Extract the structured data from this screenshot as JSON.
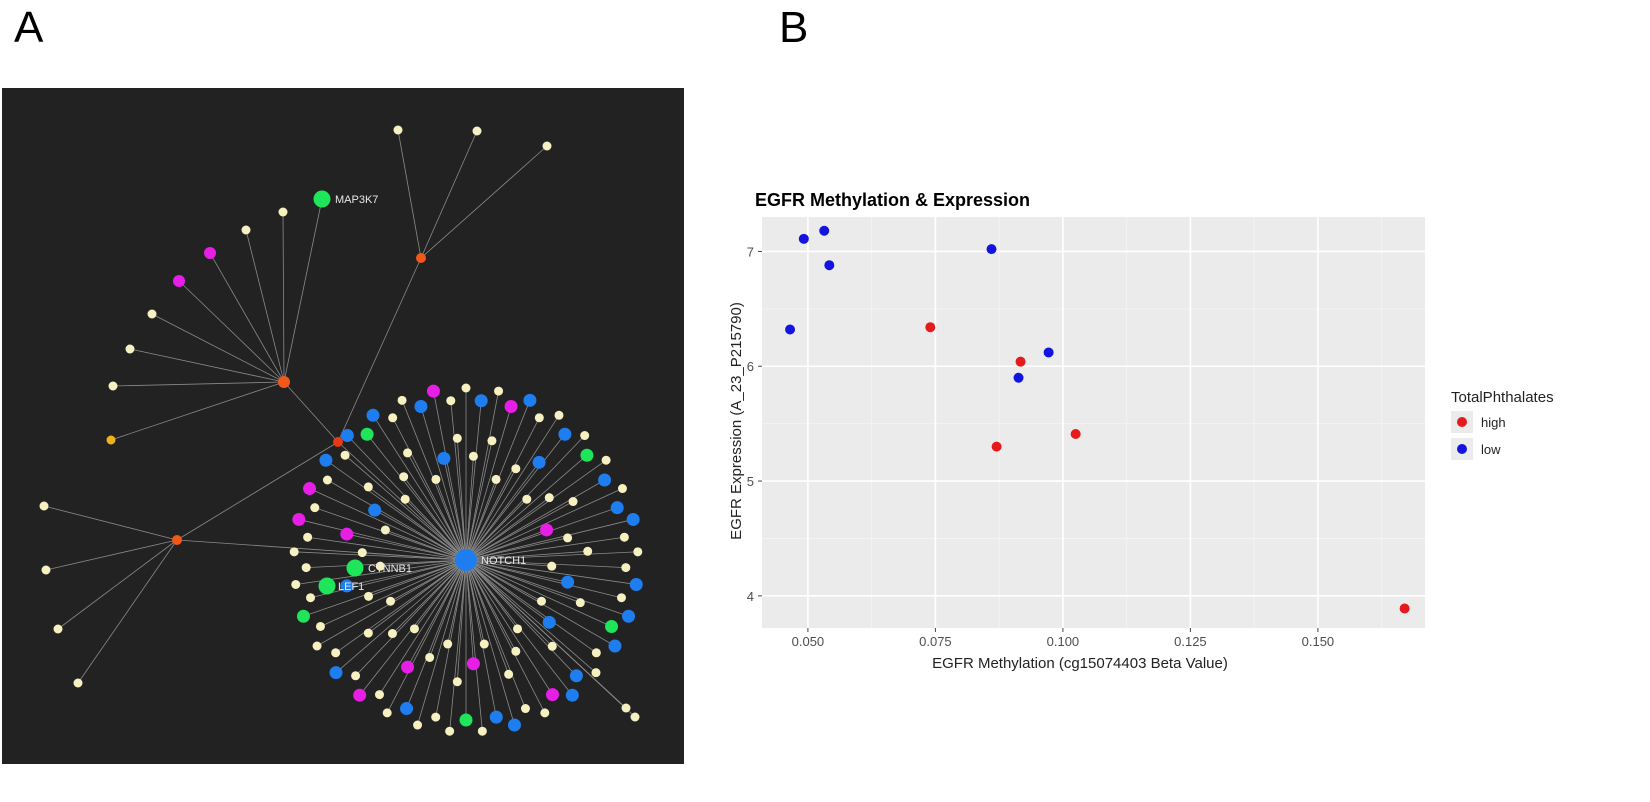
{
  "panels": {
    "a_letter": "A",
    "b_letter": "B"
  },
  "network": {
    "colors": {
      "background": "#222222",
      "edge": "#8a8a8a",
      "cream": "#f7f0c0",
      "magenta": "#e61ee6",
      "blue": "#1e7ef0",
      "green": "#1ee55a",
      "orange": "#f2581a",
      "yellow": "#f0b21a",
      "hub_red": "#e53a12"
    },
    "hub_label": "NOTCH1",
    "labeled_nodes": [
      "MAP3K7",
      "CTNNB1",
      "LEF1"
    ],
    "ring_outer_colors": [
      "cream",
      "blue",
      "cream",
      "magenta",
      "blue",
      "cream",
      "cream",
      "blue",
      "cream",
      "green",
      "cream",
      "blue",
      "cream",
      "blue",
      "blue",
      "cream",
      "cream",
      "cream",
      "blue",
      "cream",
      "blue",
      "green",
      "blue",
      "cream",
      "cream",
      "blue",
      "blue",
      "magenta",
      "cream",
      "cream",
      "blue",
      "blue",
      "cream",
      "green",
      "cream",
      "cream",
      "cream",
      "blue",
      "cream",
      "cream",
      "magenta",
      "cream",
      "blue",
      "cream",
      "cream",
      "cream",
      "green",
      "cream",
      "cream",
      "cream",
      "cream",
      "cream",
      "magenta",
      "cream",
      "magenta",
      "cream",
      "blue",
      "cream",
      "blue",
      "green",
      "blue",
      "cream",
      "cream",
      "blue",
      "magenta",
      "cream"
    ],
    "ring_inner_colors": [
      "cream",
      "cream",
      "cream",
      "cream",
      "blue",
      "cream",
      "cream",
      "cream",
      "magenta",
      "cream",
      "cream",
      "cream",
      "blue",
      "cream",
      "cream",
      "blue",
      "cream",
      "cream",
      "cream",
      "cream",
      "cream",
      "magenta",
      "cream",
      "cream",
      "cream",
      "magenta",
      "cream",
      "cream",
      "cream",
      "cream",
      "cream",
      "blue",
      "cream",
      "cream",
      "magenta",
      "cream",
      "blue",
      "cream",
      "cream",
      "cream",
      "cream",
      "cream",
      "blue",
      "cream"
    ]
  },
  "chart_data": {
    "type": "scatter",
    "title": "EGFR Methylation & Expression",
    "xlabel": "EGFR Methylation (cg15074403 Beta Value)",
    "ylabel": "EGFR Expression (A_23_P215790)",
    "xlim": [
      0.041,
      0.171
    ],
    "ylim": [
      3.72,
      7.3
    ],
    "x_ticks": [
      0.05,
      0.075,
      0.1,
      0.125,
      0.15
    ],
    "x_tick_labels": [
      "0.050",
      "0.075",
      "0.100",
      "0.125",
      "0.150"
    ],
    "y_ticks": [
      4,
      5,
      6,
      7
    ],
    "y_tick_labels": [
      "4",
      "5",
      "6",
      "7"
    ],
    "grid": true,
    "legend_title": "TotalPhthalates",
    "legend_position": "right",
    "series": [
      {
        "name": "high",
        "color": "#e41a1c",
        "points": [
          [
            0.074,
            6.34
          ],
          [
            0.0917,
            6.04
          ],
          [
            0.087,
            5.3
          ],
          [
            0.1025,
            5.41
          ],
          [
            0.167,
            3.89
          ]
        ]
      },
      {
        "name": "low",
        "color": "#1414e0",
        "points": [
          [
            0.0492,
            7.11
          ],
          [
            0.0532,
            7.18
          ],
          [
            0.0542,
            6.88
          ],
          [
            0.0465,
            6.32
          ],
          [
            0.086,
            7.02
          ],
          [
            0.0972,
            6.12
          ],
          [
            0.0913,
            5.9
          ]
        ]
      }
    ]
  }
}
